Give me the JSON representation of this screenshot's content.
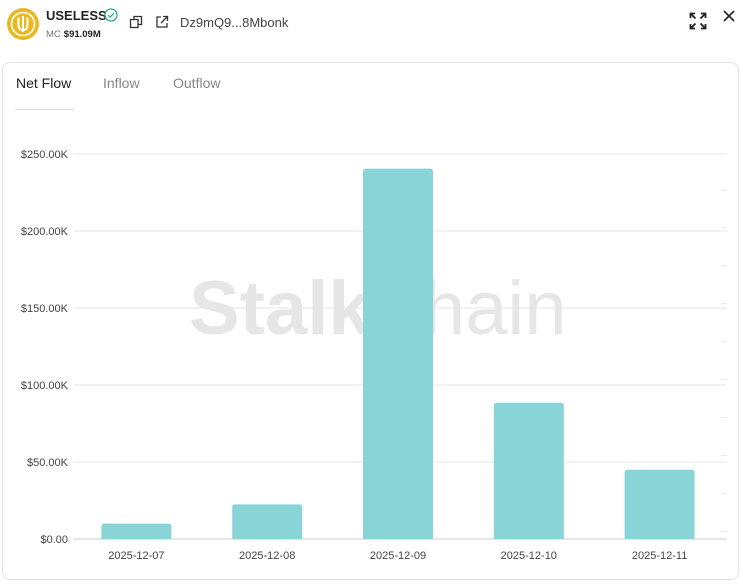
{
  "header": {
    "token_name": "USELESS",
    "mc_label": "MC",
    "mc_value": "$91.09M",
    "address": "Dz9mQ9...8Mbonk"
  },
  "tabs": [
    {
      "label": "Net Flow",
      "active": true
    },
    {
      "label": "Inflow",
      "active": false
    },
    {
      "label": "Outflow",
      "active": false
    }
  ],
  "watermark": {
    "part1": "Stalk",
    "part2": "Chain"
  },
  "colors": {
    "bar": "#88d4d7",
    "accent": "#2ab27b",
    "logo": "#e8b923"
  },
  "icons": [
    "useless-logo-icon",
    "verified-check-icon",
    "copy-icon",
    "external-link-icon",
    "expand-icon",
    "close-icon"
  ],
  "chart_data": {
    "type": "bar",
    "categories": [
      "2025-12-07",
      "2025-12-08",
      "2025-12-09",
      "2025-12-10",
      "2025-12-11"
    ],
    "values": [
      10000,
      22500,
      240500,
      88500,
      45000
    ],
    "ylim": [
      0,
      250000
    ],
    "yticks": [
      0,
      50000,
      100000,
      150000,
      200000,
      250000
    ],
    "ytick_labels": [
      "$0.00",
      "$50.00K",
      "$100.00K",
      "$150.00K",
      "$200.00K",
      "$250.00K"
    ],
    "grid": true,
    "title": "",
    "xlabel": "",
    "ylabel": ""
  }
}
